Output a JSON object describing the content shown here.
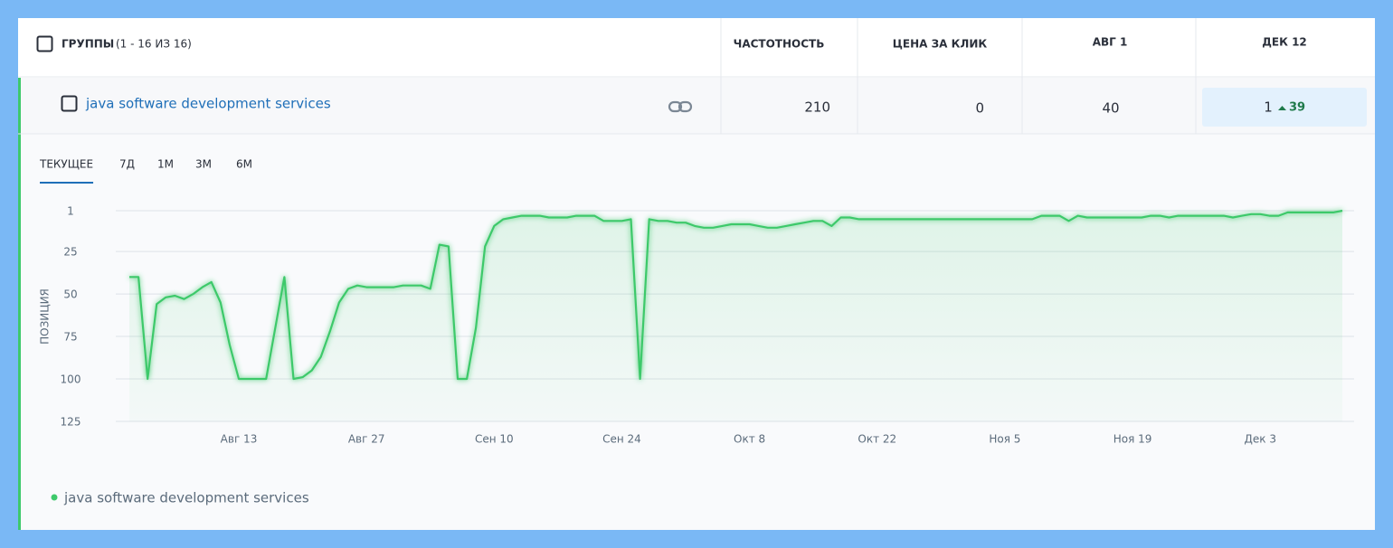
{
  "table": {
    "header": {
      "group_label": "ГРУППЫ",
      "group_count": "(1 - 16 ИЗ 16)",
      "columns": [
        "ЧАСТОТНОСТЬ",
        "ЦЕНА ЗА КЛИК",
        "АВГ 1",
        "ДЕК 12"
      ]
    },
    "rows": [
      {
        "keyword": "java software development services",
        "values": [
          210,
          0,
          40,
          1
        ],
        "change": 39
      }
    ]
  },
  "tabs": {
    "items": [
      "ТЕКУЩЕЕ",
      "7Д",
      "1М",
      "3М",
      "6М"
    ],
    "active": 0
  },
  "chart_data": {
    "type": "line",
    "y_label": "ПОЗИЦИЯ",
    "y_inverted": true,
    "grid": true,
    "categories": [
      null,
      null,
      null,
      null,
      null,
      null,
      null,
      null,
      null,
      null,
      null,
      null,
      "Авг 13",
      null,
      null,
      null,
      null,
      null,
      null,
      null,
      null,
      null,
      null,
      null,
      null,
      null,
      "Авг 27",
      null,
      null,
      null,
      null,
      null,
      null,
      null,
      null,
      null,
      null,
      null,
      null,
      null,
      "Сен 10",
      null,
      null,
      null,
      null,
      null,
      null,
      null,
      null,
      null,
      null,
      null,
      null,
      null,
      "Сен 24",
      null,
      null,
      null,
      null,
      null,
      null,
      null,
      null,
      null,
      null,
      null,
      null,
      null,
      "Окт 8",
      null,
      null,
      null,
      null,
      null,
      null,
      null,
      null,
      null,
      null,
      null,
      null,
      null,
      "Окт 22",
      null,
      null,
      null,
      null,
      null,
      null,
      null,
      null,
      null,
      null,
      null,
      null,
      null,
      "Ноя 5",
      null,
      null,
      null,
      null,
      null,
      null,
      null,
      null,
      null,
      null,
      null,
      null,
      null,
      "Ноя 19",
      null,
      null,
      null,
      null,
      null,
      null,
      null,
      null,
      null,
      null,
      null,
      null,
      null,
      "Дек 3",
      null,
      null,
      null,
      null,
      null,
      null,
      null,
      null,
      null
    ],
    "series": [
      {
        "name": "java software development services",
        "color": "#3ec96b",
        "values": [
          40,
          40,
          100,
          56,
          52,
          51,
          53,
          50,
          46,
          43,
          55,
          80,
          100,
          100,
          100,
          100,
          70,
          40,
          100,
          99,
          95,
          87,
          72,
          55,
          47,
          45,
          46,
          46,
          46,
          46,
          45,
          45,
          45,
          47,
          21,
          22,
          100,
          100,
          70,
          22,
          10,
          6,
          5,
          4,
          4,
          4,
          5,
          5,
          5,
          4,
          4,
          4,
          7,
          7,
          7,
          6,
          100,
          6,
          7,
          7,
          8,
          8,
          10,
          11,
          11,
          10,
          9,
          9,
          9,
          10,
          11,
          11,
          10,
          9,
          8,
          7,
          7,
          10,
          5,
          5,
          6,
          6,
          6,
          6,
          6,
          6,
          6,
          6,
          6,
          6,
          6,
          6,
          6,
          6,
          6,
          6,
          6,
          6,
          6,
          6,
          4,
          4,
          4,
          7,
          4,
          5,
          5,
          5,
          5,
          5,
          5,
          5,
          4,
          4,
          5,
          4,
          4,
          4,
          4,
          4,
          4,
          5,
          4,
          3,
          3,
          4,
          4,
          2,
          2,
          2,
          2,
          2,
          2,
          1
        ]
      }
    ],
    "ylim": [
      1,
      125
    ],
    "yticks": [
      1,
      25,
      50,
      75,
      100,
      125
    ]
  }
}
